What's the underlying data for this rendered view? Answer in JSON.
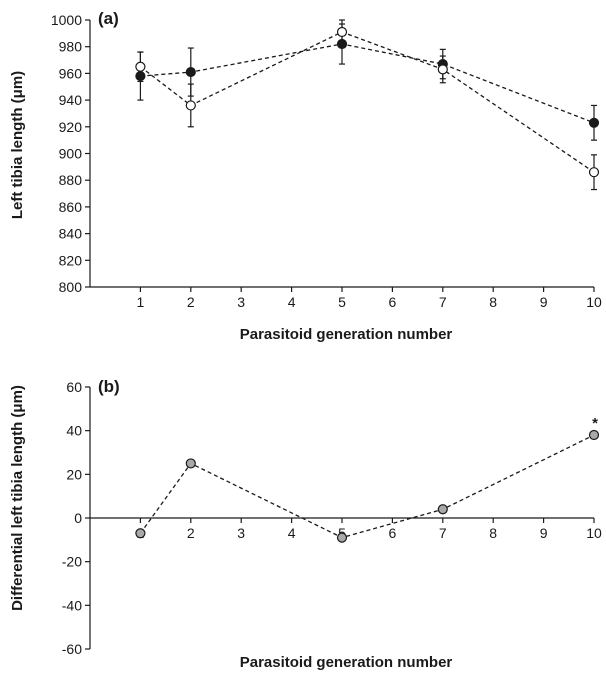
{
  "chart_data": [
    {
      "type": "line",
      "panel_label": "(a)",
      "xlabel": "Parasitoid generation number",
      "ylabel": "Left tibia length (μm)",
      "x_ticks": [
        1,
        2,
        3,
        4,
        5,
        6,
        7,
        8,
        9,
        10
      ],
      "y_ticks": [
        800,
        820,
        840,
        860,
        880,
        900,
        920,
        940,
        960,
        980,
        1000
      ],
      "xlim": [
        0,
        10
      ],
      "ylim": [
        800,
        1000
      ],
      "grid": false,
      "series": [
        {
          "marker": "filled-circle",
          "color": "#1a1a1a",
          "x": [
            1,
            2,
            5,
            7,
            10
          ],
          "y": [
            958,
            961,
            982,
            967,
            923
          ],
          "err": [
            18,
            18,
            15,
            11,
            13
          ]
        },
        {
          "marker": "open-circle",
          "color": "#ffffff",
          "x": [
            1,
            2,
            5,
            7,
            10
          ],
          "y": [
            965,
            936,
            991,
            963,
            886
          ],
          "err": [
            11,
            16,
            9,
            10,
            13
          ]
        }
      ]
    },
    {
      "type": "line",
      "panel_label": "(b)",
      "xlabel": "Parasitoid generation number",
      "ylabel": "Differential left tibia length (μm)",
      "x_ticks": [
        1,
        2,
        3,
        4,
        5,
        6,
        7,
        8,
        9,
        10
      ],
      "y_ticks": [
        -60,
        -40,
        -20,
        0,
        20,
        40,
        60
      ],
      "xlim": [
        0,
        10
      ],
      "ylim": [
        -60,
        60
      ],
      "grid": false,
      "x_axis_at_zero": true,
      "series": [
        {
          "marker": "grey-circle",
          "color": "#a9a9a9",
          "x": [
            1,
            2,
            5,
            7,
            10
          ],
          "y": [
            -7,
            25,
            -9,
            4,
            38
          ]
        }
      ],
      "annotations": [
        {
          "x": 10,
          "y": 38,
          "text": "*"
        }
      ]
    }
  ]
}
